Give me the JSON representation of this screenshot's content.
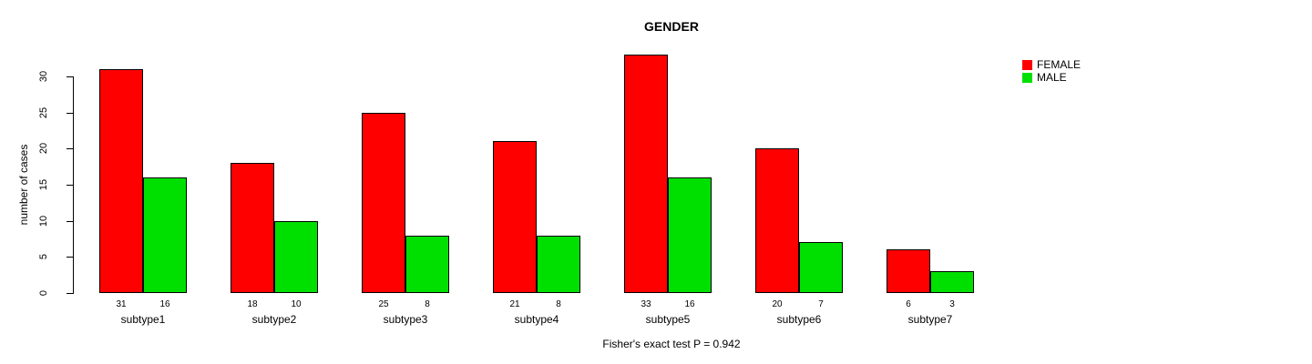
{
  "chart_data": {
    "type": "bar",
    "title": "GENDER",
    "xlabel": "",
    "ylabel": "number of cases",
    "categories": [
      "subtype1",
      "subtype2",
      "subtype3",
      "subtype4",
      "subtype5",
      "subtype6",
      "subtype7"
    ],
    "series": [
      {
        "name": "FEMALE",
        "color": "#ff0000",
        "values": [
          31,
          18,
          25,
          21,
          33,
          20,
          6
        ]
      },
      {
        "name": "MALE",
        "color": "#00e000",
        "values": [
          16,
          10,
          8,
          8,
          16,
          7,
          3
        ]
      }
    ],
    "yticks": [
      0,
      5,
      10,
      15,
      20,
      25,
      30
    ],
    "ylim": [
      0,
      33
    ],
    "grid": false,
    "bar_value_labels": true,
    "legend_position": "top-right",
    "annotation": "Fisher's exact test P = 0.942"
  }
}
